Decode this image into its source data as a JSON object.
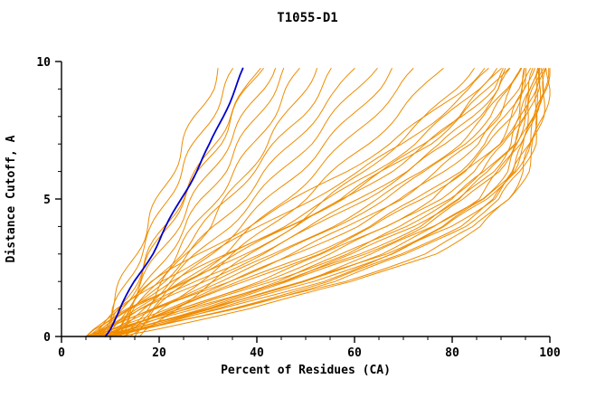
{
  "chart_data": {
    "type": "line",
    "title": "T1055-D1",
    "xlabel": "Percent of Residues (CA)",
    "ylabel": "Distance Cutoff, A",
    "xlim": [
      0,
      100
    ],
    "ylim": [
      0,
      10
    ],
    "x_major_ticks": [
      0,
      20,
      40,
      60,
      80,
      100
    ],
    "x_minor_step": 5,
    "y_major_ticks": [
      0,
      5,
      10
    ],
    "y_minor_step": 1,
    "grid": false,
    "legend": "none",
    "colors": {
      "models": "#ef8c00",
      "highlight": "#0000cd",
      "axis": "#000000",
      "text": "#000000"
    },
    "y_points": [
      0,
      1,
      2,
      3,
      4,
      5,
      6,
      7,
      8,
      9,
      10
    ],
    "series": [
      {
        "xs": [
          8,
          10,
          12.5,
          15,
          17.5,
          20,
          22.5,
          25,
          27.5,
          30.5,
          33
        ]
      },
      {
        "xs": [
          9,
          11,
          13.5,
          16,
          19,
          21.5,
          24.5,
          27.5,
          30.5,
          33.5,
          36.5
        ]
      },
      {
        "xs": [
          9.5,
          12,
          15,
          18,
          21,
          24.5,
          28,
          31,
          34.5,
          38,
          41
        ]
      },
      {
        "xs": [
          10,
          13,
          16.5,
          20,
          23.5,
          27,
          30.5,
          34,
          37.5,
          41,
          44
        ]
      },
      {
        "xs": [
          11,
          14,
          18,
          21.5,
          25.5,
          29,
          33,
          36.5,
          40,
          43.5,
          47
        ]
      },
      {
        "xs": [
          12,
          15.5,
          19.5,
          23.5,
          27.5,
          31.5,
          35.5,
          39.5,
          43,
          46.5,
          50
        ]
      },
      {
        "xs": [
          10,
          12.5,
          15.5,
          18.5,
          21.5,
          25,
          28.5,
          32,
          35,
          38,
          41.5
        ]
      },
      {
        "xs": [
          13,
          17,
          21,
          25.5,
          30,
          34,
          38,
          42,
          46,
          49.5,
          53
        ]
      },
      {
        "xs": [
          10,
          14,
          19,
          24,
          29,
          34,
          39,
          44,
          49,
          53,
          57
        ]
      },
      {
        "xs": [
          11,
          15,
          20.5,
          26,
          31.5,
          37,
          42,
          47,
          52,
          57,
          61
        ]
      },
      {
        "xs": [
          12,
          16.5,
          22,
          28,
          34,
          39.5,
          45,
          50.5,
          55.5,
          60.5,
          65
        ]
      },
      {
        "xs": [
          13,
          18,
          24,
          30.5,
          36.5,
          42.5,
          48.5,
          54,
          59.5,
          64.5,
          69
        ]
      },
      {
        "xs": [
          14,
          19.5,
          26,
          33,
          39.5,
          46,
          52,
          58,
          63.5,
          69,
          74
        ]
      },
      {
        "xs": [
          15,
          21,
          28,
          35.5,
          42.5,
          49.5,
          56,
          62.5,
          68.5,
          74,
          79
        ]
      },
      {
        "xs": [
          16,
          23,
          31,
          39,
          47,
          54.5,
          62,
          68.5,
          75,
          80.5,
          85
        ]
      },
      {
        "xs": [
          5,
          15,
          26,
          37,
          48,
          58,
          67,
          75,
          82,
          88,
          92
        ]
      },
      {
        "xs": [
          5.5,
          17,
          29,
          41,
          52,
          62,
          71,
          79,
          85,
          90,
          93
        ]
      },
      {
        "xs": [
          6,
          19,
          32,
          45,
          56,
          66,
          75,
          82,
          88,
          92,
          94
        ]
      },
      {
        "xs": [
          6.5,
          21,
          35,
          48,
          60,
          70,
          78,
          85,
          90,
          93,
          95
        ]
      },
      {
        "xs": [
          7,
          23,
          38,
          52,
          64,
          74,
          82,
          88,
          92,
          94,
          96
        ]
      },
      {
        "xs": [
          7.5,
          25,
          41,
          55,
          67,
          77,
          85,
          90,
          93,
          95,
          96.5
        ]
      },
      {
        "xs": [
          8,
          27,
          44,
          58,
          70,
          80,
          87,
          92,
          94.5,
          96,
          97
        ]
      },
      {
        "xs": [
          8.5,
          29,
          47,
          62,
          74,
          83,
          89,
          93,
          95.5,
          97,
          98
        ]
      },
      {
        "xs": [
          9,
          31,
          50,
          65,
          77,
          86,
          91,
          94,
          96,
          97.5,
          98.5
        ]
      },
      {
        "xs": [
          9.5,
          33,
          53,
          68,
          80,
          88,
          93,
          95.5,
          97,
          98,
          99
        ]
      },
      {
        "xs": [
          10,
          35,
          56,
          71,
          82,
          90,
          94,
          96.5,
          98,
          99,
          99.5
        ]
      },
      {
        "xs": [
          7,
          30,
          50,
          66,
          78,
          87,
          92,
          95,
          97,
          98,
          99
        ]
      },
      {
        "xs": [
          8,
          36,
          58,
          74,
          85,
          91,
          94.5,
          96.5,
          98,
          99,
          100
        ]
      },
      {
        "xs": [
          6,
          26,
          45,
          60,
          72,
          81,
          88,
          92.5,
          95,
          96.5,
          97.5
        ]
      },
      {
        "xs": [
          5,
          13,
          23,
          34,
          45,
          55,
          64,
          72,
          79,
          85,
          90
        ]
      },
      {
        "xs": [
          6,
          16,
          28,
          40,
          51,
          61,
          70,
          78,
          84,
          89,
          92.5
        ]
      },
      {
        "xs": [
          7,
          20,
          34,
          47,
          59,
          69,
          77,
          84,
          89,
          92.5,
          95
        ]
      },
      {
        "xs": [
          8,
          24,
          40,
          54,
          66,
          76,
          83,
          89,
          92.5,
          95,
          96.5
        ]
      },
      {
        "xs": [
          9,
          28,
          46,
          61,
          73,
          82,
          88,
          92,
          94.5,
          96.5,
          98
        ]
      },
      {
        "xs": [
          10,
          32,
          52,
          67,
          79,
          87,
          92,
          95,
          96.5,
          98,
          99
        ]
      },
      {
        "xs": [
          5.5,
          14,
          25,
          36,
          47,
          57,
          66,
          74,
          81,
          86.5,
          91
        ]
      },
      {
        "xs": [
          6.5,
          18,
          31,
          44,
          55,
          65,
          74,
          81,
          87,
          91,
          94
        ]
      },
      {
        "xs": [
          7.5,
          22,
          37,
          51,
          63,
          73,
          81,
          87,
          91,
          94,
          96
        ]
      },
      {
        "xs": [
          8.5,
          26,
          43,
          58,
          70,
          79,
          86,
          91,
          94,
          96,
          97.5
        ]
      },
      {
        "xs": [
          9.5,
          30,
          49,
          64,
          76,
          85,
          90,
          93.5,
          95.5,
          97,
          98.5
        ]
      },
      {
        "xs": [
          11,
          34,
          55,
          70,
          81,
          89,
          93,
          95.5,
          97.5,
          98.5,
          99.5
        ]
      },
      {
        "xs": [
          12,
          38,
          60,
          76,
          86,
          92,
          95,
          97,
          98.5,
          99.5,
          100
        ]
      },
      {
        "xs": [
          6,
          12,
          20,
          30,
          41,
          51,
          61,
          70,
          77,
          84,
          89
        ]
      },
      {
        "xs": [
          7,
          14,
          24,
          35,
          46,
          57,
          66,
          75,
          82,
          87.5,
          92
        ]
      },
      {
        "xs": [
          5,
          11,
          19,
          28,
          38,
          48,
          58,
          67,
          75,
          82,
          88
        ]
      },
      {
        "highlight": true,
        "xs": [
          9,
          12,
          15,
          18.5,
          21.5,
          24.5,
          27.5,
          30.5,
          33,
          35.5,
          38
        ]
      }
    ]
  }
}
